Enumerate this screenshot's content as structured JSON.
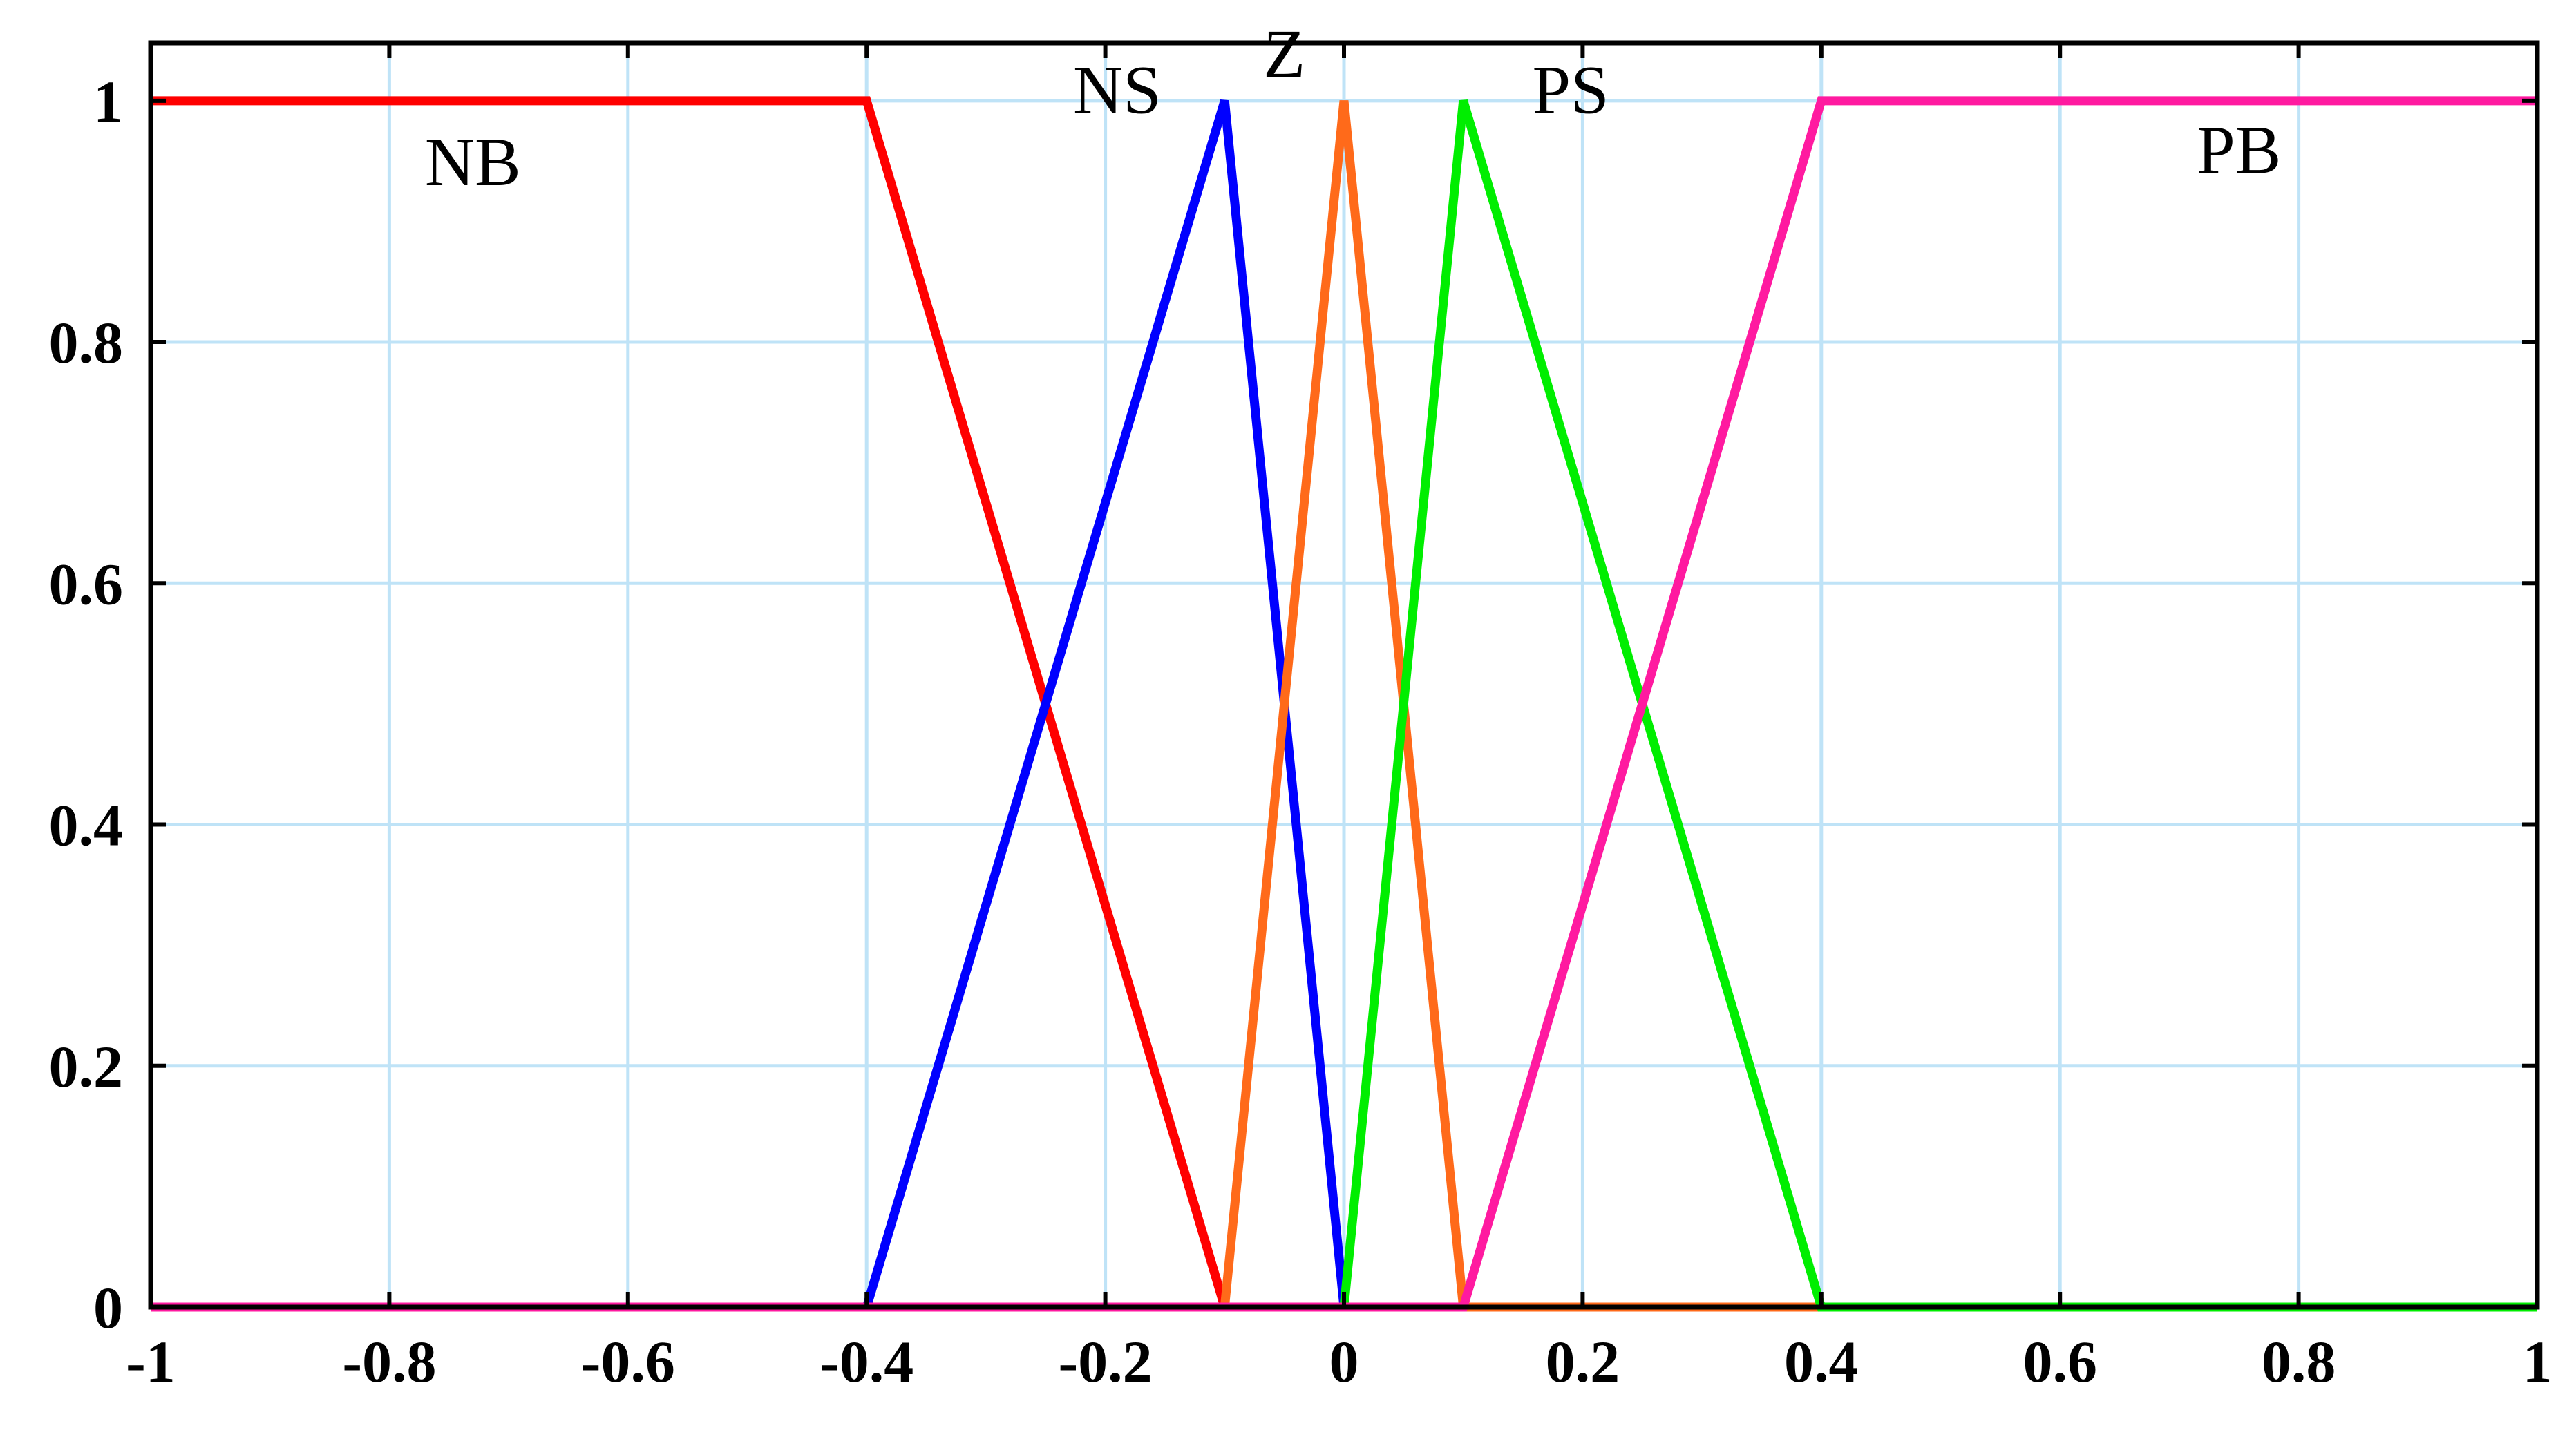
{
  "chart_data": {
    "type": "line",
    "title": "",
    "xlabel": "",
    "ylabel": "",
    "xlim": [
      -1,
      1
    ],
    "ylim": [
      0,
      1
    ],
    "grid": true,
    "x_ticks": [
      -1,
      -0.8,
      -0.6,
      -0.4,
      -0.2,
      0,
      0.2,
      0.4,
      0.6,
      0.8,
      1
    ],
    "x_tick_labels": [
      "-1",
      "-0.8",
      "-0.6",
      "-0.4",
      "-0.2",
      "0",
      "0.2",
      "0.4",
      "0.6",
      "0.8",
      "1"
    ],
    "y_ticks": [
      0,
      0.2,
      0.4,
      0.6,
      0.8,
      1
    ],
    "y_tick_labels": [
      "0",
      "0.2",
      "0.4",
      "0.6",
      "0.8",
      "1"
    ],
    "series": [
      {
        "name": "NB",
        "color": "#ff0000",
        "x": [
          -1,
          -0.4,
          -0.1,
          1
        ],
        "y": [
          1,
          1,
          0,
          0
        ],
        "label_at": [
          -0.73,
          0.93
        ]
      },
      {
        "name": "NS",
        "color": "#0000ff",
        "x": [
          -1,
          -0.4,
          -0.1,
          0,
          1
        ],
        "y": [
          0,
          0,
          1,
          0,
          0
        ],
        "label_at": [
          -0.19,
          0.99
        ]
      },
      {
        "name": "Z",
        "color": "#ff6a1a",
        "x": [
          -1,
          -0.1,
          0,
          0.1,
          1
        ],
        "y": [
          0,
          0,
          1,
          0,
          0
        ],
        "label_at": [
          -0.05,
          1.02
        ]
      },
      {
        "name": "PS",
        "color": "#00ee00",
        "x": [
          -1,
          0,
          0.1,
          0.4,
          1
        ],
        "y": [
          0,
          0,
          1,
          0,
          0
        ],
        "label_at": [
          0.19,
          0.99
        ]
      },
      {
        "name": "PB",
        "color": "#ff1aa0",
        "x": [
          -1,
          0.1,
          0.4,
          1
        ],
        "y": [
          0,
          0,
          1,
          1
        ],
        "label_at": [
          0.75,
          0.94
        ]
      }
    ]
  }
}
